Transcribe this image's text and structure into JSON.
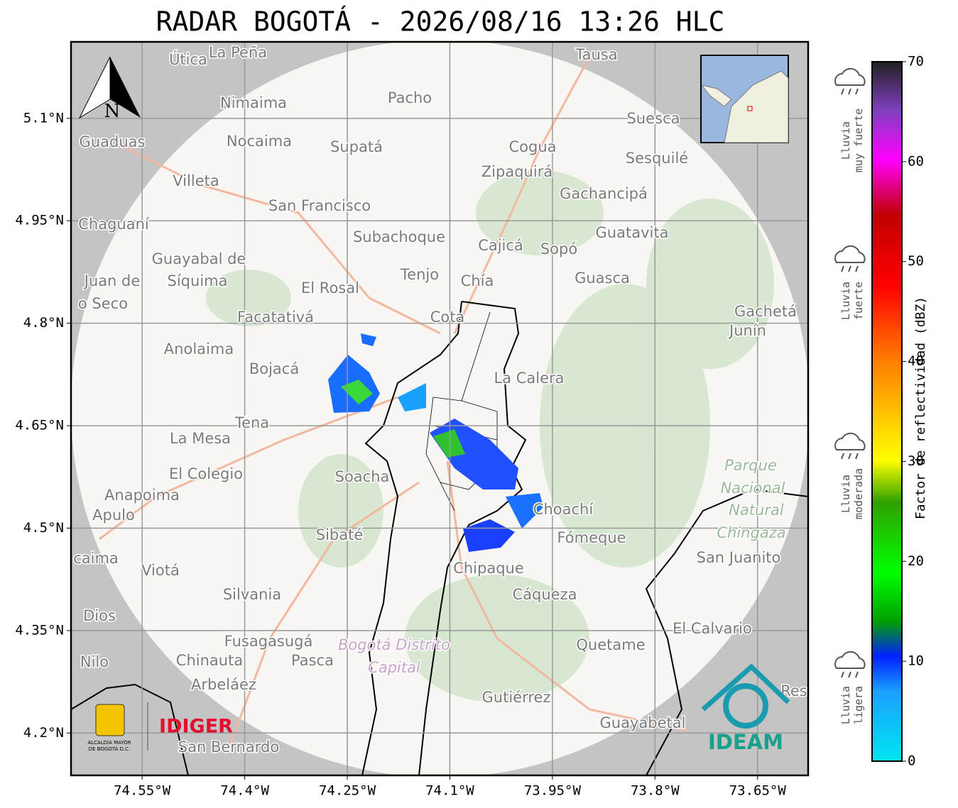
{
  "title": "RADAR BOGOTÁ - 2026/08/16 13:26 HLC",
  "map": {
    "xlim": [
      -74.654,
      -73.576
    ],
    "ylim": [
      4.138,
      5.212
    ],
    "grid": true,
    "north": "N",
    "xticks": [
      {
        "value": -74.55,
        "label": "74.55°W"
      },
      {
        "value": -74.4,
        "label": "74.4°W"
      },
      {
        "value": -74.25,
        "label": "74.25°W"
      },
      {
        "value": -74.1,
        "label": "74.1°W"
      },
      {
        "value": -73.95,
        "label": "73.95°W"
      },
      {
        "value": -73.8,
        "label": "73.8°W"
      },
      {
        "value": -73.65,
        "label": "73.65°W"
      }
    ],
    "yticks": [
      {
        "value": 5.1,
        "label": "5.1°N"
      },
      {
        "value": 4.95,
        "label": "4.95°N"
      },
      {
        "value": 4.8,
        "label": "4.8°N"
      },
      {
        "value": 4.65,
        "label": "4.65°N"
      },
      {
        "value": 4.5,
        "label": "4.5°N"
      },
      {
        "value": 4.35,
        "label": "4.35°N"
      },
      {
        "value": 4.2,
        "label": "4.2°N"
      }
    ],
    "places": [
      "Útica",
      "La Peña",
      "Tausa",
      "Nimaima",
      "Pacho",
      "Guaduas",
      "Nocaima",
      "Supatá",
      "Cogua",
      "Suesca",
      "Sesquilé",
      "Zipaquirá",
      "Villeta",
      "Gachancipá",
      "San Francisco",
      "Chaguaní",
      "Guatavita",
      "Subachoque",
      "Cajicá",
      "Sopó",
      "Guayabal de",
      "Síquima",
      "Juan de",
      "o Seco",
      "Tenjo",
      "Chía",
      "Guasca",
      "El Rosal",
      "Facatativá",
      "Cota",
      "Gachetá",
      "Junín",
      "Anolaima",
      "Bojacá",
      "La Calera",
      "Tena",
      "La Mesa",
      "El Colegio",
      "Soacha",
      "Anapoima",
      "Apulo",
      "Choachí",
      "Sibaté",
      "Fómeque",
      "San Juanito",
      "caima",
      "Viotá",
      "Chipaque",
      "Silvania",
      "Cáqueza",
      "Dios",
      "El Calvario",
      "Fusagasugá",
      "Quetame",
      "Nilo",
      "Chinauta",
      "Pasca",
      "Arbeláez",
      "Gutiérrez",
      "Res",
      "Guayabetal",
      "San Bernardo",
      "Parque",
      "Nacional",
      "Natural",
      "Chingaza",
      "Bogotá Distrito",
      "Capital"
    ]
  },
  "colorbar": {
    "label": "Factor de reflectividad (dBZ)",
    "lim": [
      0,
      70
    ],
    "ticks": [
      0,
      10,
      20,
      30,
      40,
      50,
      60,
      70
    ]
  },
  "legend": [
    [
      "Lluvia",
      "muy fuerte"
    ],
    [
      "Lluvia",
      "fuerte"
    ],
    [
      "Lluvia",
      "moderada"
    ],
    [
      "Lluvia",
      "ligera"
    ]
  ],
  "logos": {
    "alcaldia": [
      "ALCALDÍA MAYOR",
      "DE BOGOTÁ D.C."
    ],
    "idiger": "IDIGER",
    "ideam": "IDEAM"
  }
}
